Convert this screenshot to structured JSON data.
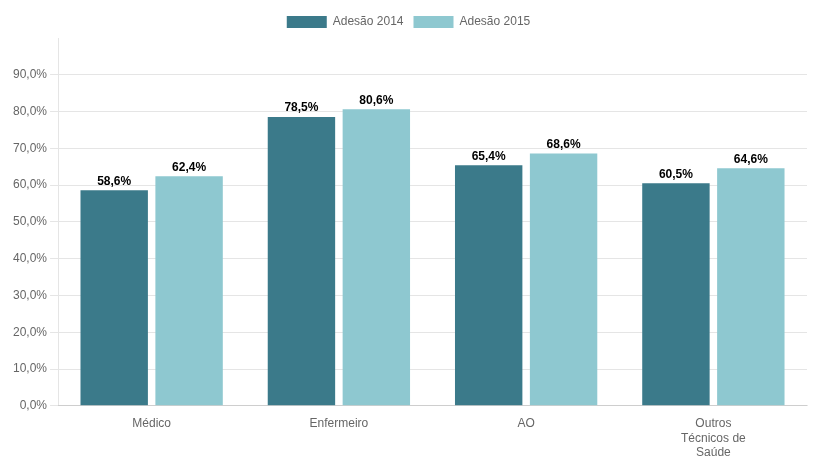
{
  "chart_data": {
    "type": "bar",
    "categories": [
      "Médico",
      "Enfermeiro",
      "AO",
      "Outros\nTécnicos de\nSaúde"
    ],
    "series": [
      {
        "name": "Adesão 2014",
        "color": "#3B7A8A",
        "values": [
          58.6,
          78.5,
          65.4,
          60.5
        ],
        "value_labels": [
          "58,6%",
          "78,5%",
          "65,4%",
          "60,5%"
        ]
      },
      {
        "name": "Adesão 2015",
        "color": "#8EC8D0",
        "values": [
          62.4,
          80.6,
          68.6,
          64.6
        ],
        "value_labels": [
          "62,4%",
          "80,6%",
          "68,6%",
          "64,6%"
        ]
      }
    ],
    "ylim": [
      0,
      100
    ],
    "yticks": [
      {
        "value": 0,
        "label": "0,0%"
      },
      {
        "value": 10,
        "label": "10,0%"
      },
      {
        "value": 20,
        "label": "20,0%"
      },
      {
        "value": 30,
        "label": "30,0%"
      },
      {
        "value": 40,
        "label": "40,0%"
      },
      {
        "value": 50,
        "label": "50,0%"
      },
      {
        "value": 60,
        "label": "60,0%"
      },
      {
        "value": 70,
        "label": "70,0%"
      },
      {
        "value": 80,
        "label": "80,0%"
      },
      {
        "value": 90,
        "label": "90,0%"
      }
    ],
    "grid": true,
    "legend": "top",
    "data_labels": true
  }
}
